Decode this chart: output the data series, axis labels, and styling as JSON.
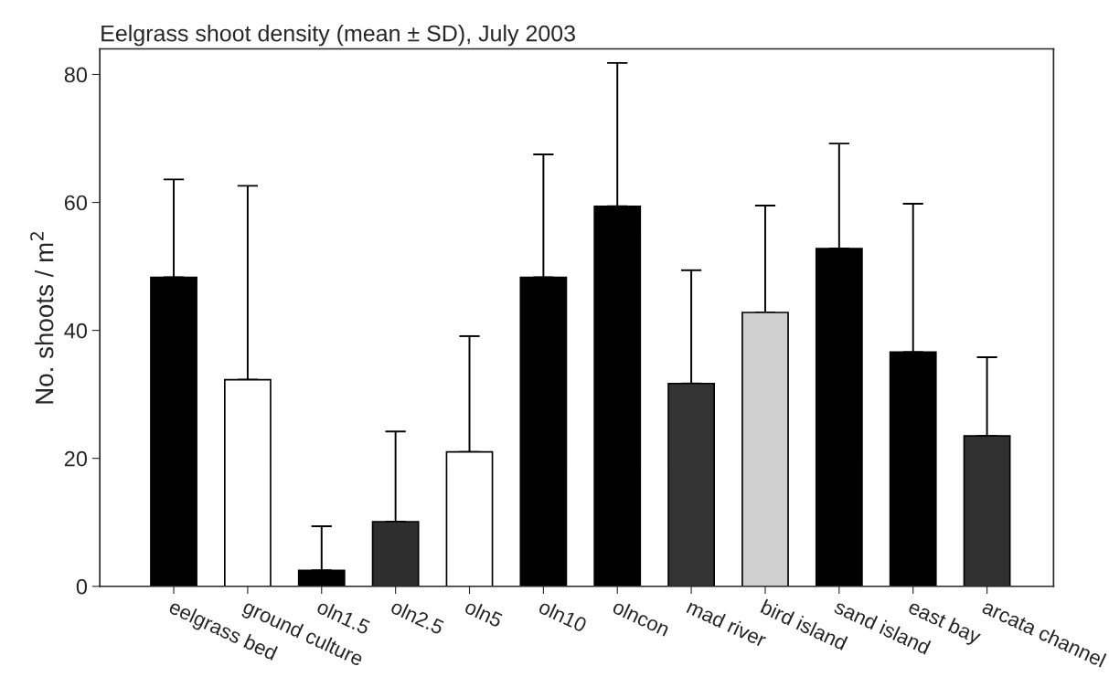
{
  "chart_data": {
    "type": "bar",
    "title": "Eelgrass shoot density (mean ± SD), July 2003",
    "ylabel": "No. shoots / m$^{2}$",
    "categories": [
      "eelgrass bed",
      "ground culture",
      "oln1.5",
      "oln2.5",
      "oln5",
      "oln10",
      "olncon",
      "mad river",
      "bird island",
      "sand island",
      "east bay",
      "arcata channel"
    ],
    "values": [
      48.3,
      32.3,
      2.5,
      10.1,
      21.0,
      48.3,
      59.4,
      31.7,
      42.8,
      52.8,
      36.6,
      23.5
    ],
    "errors": [
      [
        48.3,
        63.6
      ],
      [
        32.3,
        62.6
      ],
      [
        2.5,
        9.4
      ],
      [
        10.1,
        24.2
      ],
      [
        21.0,
        39.1
      ],
      [
        48.3,
        67.5
      ],
      [
        59.4,
        81.8
      ],
      [
        31.7,
        49.4
      ],
      [
        42.8,
        59.5
      ],
      [
        52.8,
        69.2
      ],
      [
        36.6,
        59.8
      ],
      [
        23.5,
        35.8
      ]
    ],
    "colors": [
      "#000000",
      "#ffffff",
      "#000000",
      "#2e2e2e",
      "#ffffff",
      "#000000",
      "#000000",
      "#333333",
      "#cfcfcf",
      "#000000",
      "#000000",
      "#303030"
    ],
    "ylim": [
      0,
      84
    ],
    "yticks": [
      0,
      20,
      40,
      60,
      80
    ],
    "grid": false,
    "legend": false
  }
}
